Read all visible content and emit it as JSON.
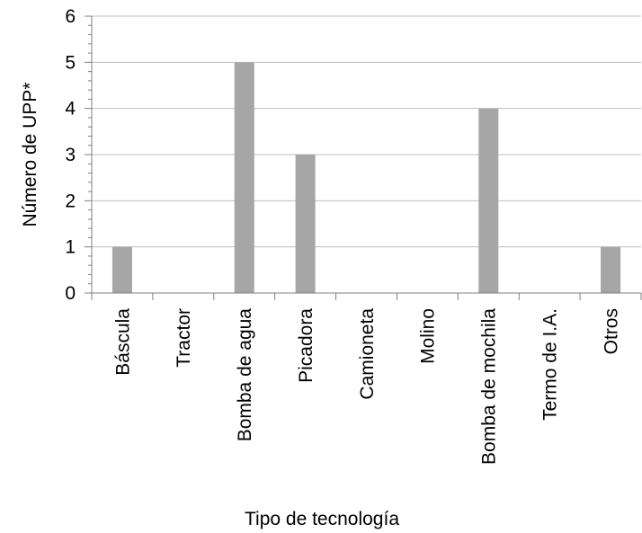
{
  "chart_data": {
    "type": "bar",
    "title": "",
    "xlabel": "Tipo de tecnología",
    "ylabel": "Número de UPP*",
    "categories": [
      "Báscula",
      "Tractor",
      "Bomba de agua",
      "Picadora",
      "Camioneta",
      "Molino",
      "Bomba de mochila",
      "Termo de I.A.",
      "Otros"
    ],
    "values": [
      1,
      0,
      5,
      3,
      0,
      0,
      4,
      0,
      1
    ],
    "ylim": [
      0,
      6
    ],
    "yticks": [
      "0",
      "1",
      "2",
      "3",
      "4",
      "5",
      "6"
    ],
    "grid": true,
    "legend": "none",
    "colors": {
      "bar": "#a6a6a6",
      "grid": "#bfbfbf",
      "axis": "#808080"
    }
  }
}
